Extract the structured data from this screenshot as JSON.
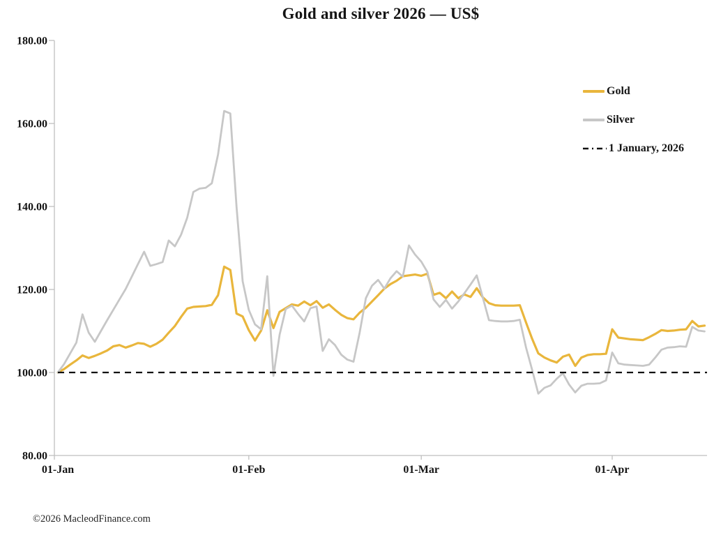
{
  "title": "Gold and silver 2026 — US$",
  "copyright": "©2026 MacleodFinance.com",
  "legend": {
    "gold_label": "Gold",
    "silver_label": "Silver",
    "baseline_label": "1 January, 2026"
  },
  "colors": {
    "gold": "#E9B63C",
    "silver": "#C7C7C7",
    "baseline": "#111111",
    "axis": "#BFBFBF",
    "text": "#141414"
  },
  "chart_data": {
    "type": "line",
    "title": "Gold and silver 2026 — US$",
    "xlabel": "",
    "ylabel": "",
    "grid": false,
    "legend_position": "top-right",
    "x_axis": {
      "unit": "days since 1 January 2026",
      "tick_labels": [
        "01-Jan",
        "01-Feb",
        "01-Mar",
        "01-Apr"
      ],
      "tick_days": [
        0,
        31,
        59,
        90
      ],
      "start_day": 0,
      "end_day": 105
    },
    "y_axis": {
      "range": [
        80,
        180
      ],
      "ticks": [
        180,
        160,
        140,
        120,
        100,
        80
      ],
      "tick_labels": [
        "180.00",
        "160.00",
        "140.00",
        "120.00",
        "100.00",
        "80.00"
      ]
    },
    "baseline": {
      "value": 100,
      "label": "1 January, 2026",
      "style": "dashed"
    },
    "series": [
      {
        "name": "Gold",
        "color": "#E9B63C",
        "values": [
          100.0,
          100.8,
          101.9,
          102.9,
          104.1,
          103.5,
          104.0,
          104.6,
          105.3,
          106.3,
          106.6,
          106.0,
          106.5,
          107.1,
          106.9,
          106.2,
          106.9,
          107.9,
          109.6,
          111.2,
          113.4,
          115.4,
          115.8,
          115.9,
          116.0,
          116.3,
          118.6,
          125.5,
          124.7,
          114.2,
          113.5,
          110.2,
          107.7,
          110.1,
          115.0,
          110.7,
          114.6,
          115.5,
          116.4,
          116.1,
          117.1,
          116.2,
          117.2,
          115.6,
          116.4,
          115.1,
          113.9,
          113.1,
          112.8,
          114.4,
          115.6,
          117.1,
          118.6,
          120.2,
          121.3,
          122.1,
          123.2,
          123.4,
          123.6,
          123.3,
          123.8,
          118.7,
          119.2,
          117.9,
          119.5,
          117.9,
          118.8,
          118.2,
          120.3,
          118.1,
          116.7,
          116.2,
          116.1,
          116.1,
          116.1,
          116.2,
          112.1,
          108.1,
          104.6,
          103.6,
          102.9,
          102.4,
          103.8,
          104.3,
          101.6,
          103.6,
          104.2,
          104.4,
          104.4,
          104.5,
          110.4,
          108.4,
          108.2,
          108.0,
          107.9,
          107.8,
          108.5,
          109.3,
          110.2,
          110.0,
          110.1,
          110.3,
          110.4,
          112.4,
          111.1,
          111.3
        ]
      },
      {
        "name": "Silver",
        "color": "#C7C7C7",
        "values": [
          100.0,
          102.0,
          104.6,
          107.2,
          114.0,
          109.6,
          107.4,
          110.0,
          112.6,
          115.1,
          117.6,
          120.1,
          123.1,
          126.1,
          129.1,
          125.7,
          126.1,
          126.6,
          131.8,
          130.4,
          133.2,
          137.3,
          143.5,
          144.3,
          144.5,
          145.6,
          152.5,
          163.0,
          162.4,
          140.0,
          122.0,
          115.1,
          111.6,
          110.4,
          123.2,
          99.2,
          109.1,
          115.3,
          116.1,
          114.1,
          112.3,
          115.5,
          115.9,
          105.2,
          108.0,
          106.6,
          104.3,
          103.1,
          102.6,
          109.6,
          117.9,
          120.9,
          122.3,
          120.2,
          122.7,
          124.4,
          123.1,
          130.6,
          128.4,
          126.7,
          124.2,
          117.6,
          115.8,
          117.5,
          115.4,
          117.1,
          119.1,
          121.2,
          123.4,
          118.0,
          112.6,
          112.4,
          112.3,
          112.3,
          112.4,
          112.7,
          106.1,
          100.6,
          94.9,
          96.3,
          96.9,
          98.5,
          99.8,
          97.1,
          95.2,
          96.8,
          97.3,
          97.3,
          97.4,
          98.1,
          104.8,
          102.2,
          101.9,
          101.8,
          101.7,
          101.6,
          101.9,
          103.6,
          105.5,
          106.0,
          106.1,
          106.3,
          106.2,
          111.0,
          110.1,
          109.9
        ]
      }
    ]
  }
}
